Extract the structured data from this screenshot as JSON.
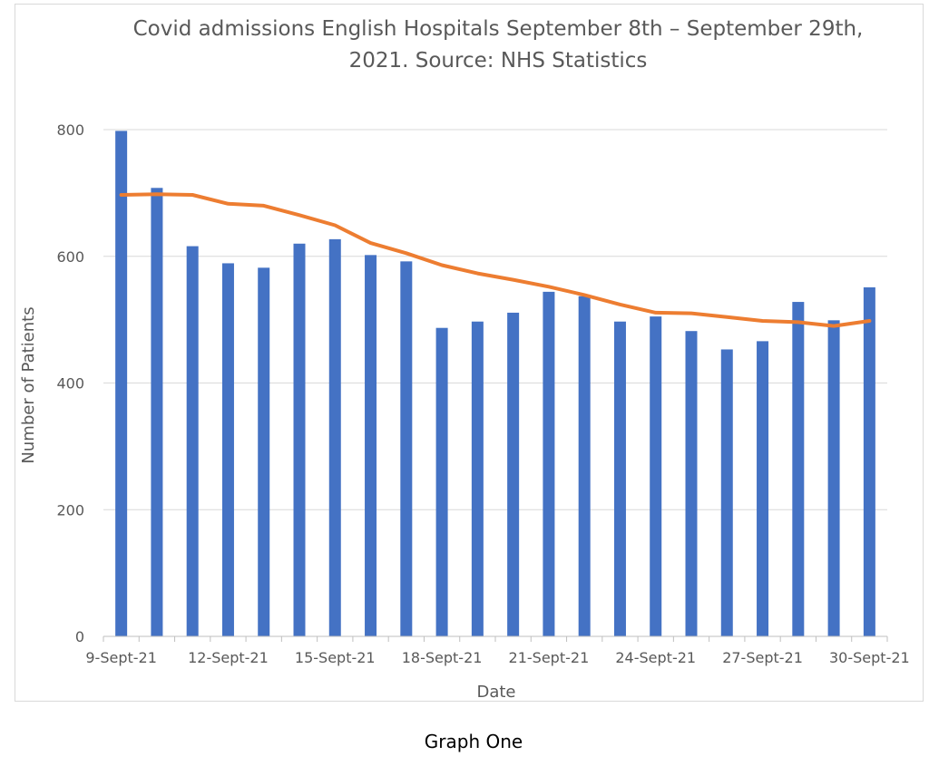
{
  "chart_data": {
    "type": "bar",
    "title_lines": [
      "Covid admissions English Hospitals September 8th – September 29th,",
      "2021. Source: NHS Statistics"
    ],
    "xlabel": "Date",
    "ylabel": "Number of Patients",
    "ylim": [
      0,
      800
    ],
    "yticks": [
      0,
      200,
      400,
      600,
      800
    ],
    "grid": true,
    "legend": "none",
    "categories": [
      "9-Sept-21",
      "10-Sept-21",
      "11-Sept-21",
      "12-Sept-21",
      "13-Sept-21",
      "14-Sept-21",
      "15-Sept-21",
      "16-Sept-21",
      "17-Sept-21",
      "18-Sept-21",
      "19-Sept-21",
      "20-Sept-21",
      "21-Sept-21",
      "22-Sept-21",
      "23-Sept-21",
      "24-Sept-21",
      "25-Sept-21",
      "26-Sept-21",
      "27-Sept-21",
      "28-Sept-21",
      "29-Sept-21",
      "30-Sept-21"
    ],
    "tick_labels": [
      "9-Sept-21",
      "12-Sept-21",
      "15-Sept-21",
      "18-Sept-21",
      "21-Sept-21",
      "24-Sept-21",
      "27-Sept-21",
      "30-Sept-21"
    ],
    "series": [
      {
        "type": "bar",
        "color": "#4472c4",
        "values": [
          798,
          708,
          616,
          589,
          582,
          620,
          627,
          602,
          592,
          487,
          497,
          511,
          544,
          537,
          497,
          505,
          482,
          453,
          466,
          528,
          499,
          551
        ]
      },
      {
        "type": "line",
        "color": "#ed7d31",
        "values": [
          697,
          698,
          697,
          683,
          680,
          665,
          649,
          621,
          605,
          586,
          573,
          563,
          552,
          539,
          524,
          511,
          510,
          504,
          498,
          496,
          490,
          498
        ]
      }
    ]
  },
  "caption": "Graph One"
}
